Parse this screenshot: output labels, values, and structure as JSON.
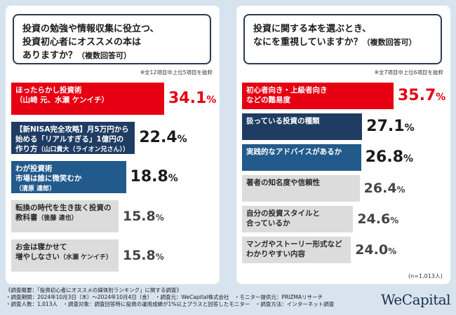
{
  "colors": {
    "top": "#e60012",
    "navy": "#1f3c63",
    "blue": "#215a8b",
    "gray": "#dcdcdc",
    "background": "#d7e3ee"
  },
  "left": {
    "question": "投資の勉強や情報収集に役立つ、\n投資初心者にオススメの本は\nありますか？",
    "question_note": "（複数回答可）",
    "note": "※全12項目中上位5項目を抜粋"
  },
  "right": {
    "question": "投資に関する本を選ぶとき、\nなにを重視していますか？",
    "question_note": "（複数回答可）",
    "note": "※全7項目中上位6項目を抜粋"
  },
  "chart_data": [
    {
      "type": "bar",
      "categories": [
        "ほったらかし投資術（山崎 元、水瀬 ケンイチ）",
        "【新NISA完全攻略】月5万円から始める「リアルすぎる」1億円の作り方（山口貴大（ライオン兄さん））",
        "わが投資術 市場は誰に微笑むか（清原 達郎）",
        "転換の時代を生き抜く投資の教科書（後藤 達也）",
        "お金は寝かせて増やしなさい（水瀬 ケンイチ）"
      ],
      "values": [
        34.1,
        22.4,
        18.8,
        15.8,
        15.8
      ],
      "unit": "%",
      "labels": [
        {
          "main": "ほったらかし投資術\n（山崎 元、水瀬 ケンイチ）",
          "small": ""
        },
        {
          "main": "【新NISA完全攻略】月5万円から\n始める「リアルすぎる」1億円の\n作り方",
          "small": "（山口貴大（ライオン兄さん））"
        },
        {
          "main": "わが投資術\n市場は誰に微笑むか",
          "small": "（清原 達郎）"
        },
        {
          "main": "転換の時代を生き抜く投資の\n教科書",
          "small": "（後藤 達也）"
        },
        {
          "main": "お金は寝かせて\n増やしなさい",
          "small": "（水瀬 ケンイチ）"
        }
      ]
    },
    {
      "type": "bar",
      "categories": [
        "初心者向き・上級者向きなどの難易度",
        "扱っている投資の種類",
        "実践的なアドバイスがあるか",
        "著者の知名度や信頼性",
        "自分の投資スタイルと合っているか",
        "マンガやストーリー形式などわかりやすい内容"
      ],
      "values": [
        35.7,
        27.1,
        26.8,
        26.4,
        24.6,
        24.0
      ],
      "unit": "%",
      "labels": [
        {
          "main": "初心者向き・上級者向き\nなどの難易度",
          "small": ""
        },
        {
          "main": "扱っている投資の種類",
          "small": ""
        },
        {
          "main": "実践的なアドバイスがあるか",
          "small": ""
        },
        {
          "main": "著者の知名度や信頼性",
          "small": ""
        },
        {
          "main": "自分の投資スタイルと\n合っているか",
          "small": ""
        },
        {
          "main": "マンガやストーリー形式など\nわかりやすい内容",
          "small": ""
        }
      ]
    }
  ],
  "sample_note": "(n=1,013人)",
  "footer": {
    "lines": [
      "《調査概要：「投資初心者にオススメの媒体別ランキング」に関する調査》",
      "・調査期間：2024年10月3日（木）〜2024年10月4日（金）　・調査元：WeCapital株式会社　・モニター提供元：PRIZMAリサーチ",
      "・調査人数：1,013人　・調査対象：調査回答時に投資の運用成績が1%以上プラスと回答したモニター　・調査方法：インターネット調査"
    ]
  },
  "logo": "WeCapital"
}
